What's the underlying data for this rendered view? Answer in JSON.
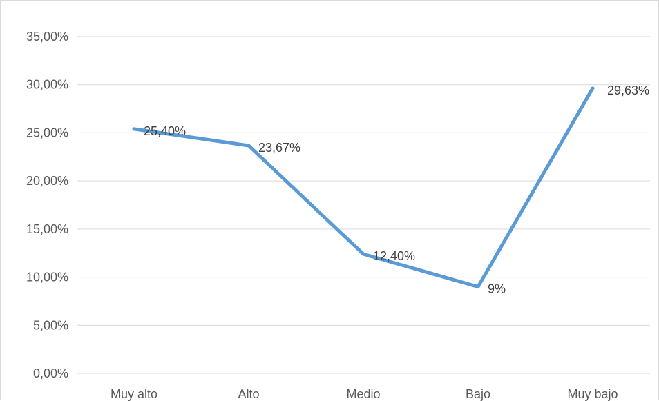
{
  "chart_data": {
    "type": "line",
    "categories": [
      "Muy alto",
      "Alto",
      "Medio",
      "Bajo",
      "Muy bajo"
    ],
    "series": [
      {
        "values": [
          25.4,
          23.67,
          12.4,
          9.0,
          29.63
        ],
        "data_labels": [
          "25,40%",
          "23,67%",
          "12,40%",
          "9%",
          "29,63%"
        ],
        "color": "#5b9bd5"
      }
    ],
    "y_tick_labels": [
      "0,00%",
      "5,00%",
      "10,00%",
      "15,00%",
      "20,00%",
      "25,00%",
      "30,00%",
      "35,00%"
    ],
    "ylim": [
      0,
      35
    ],
    "grid": true,
    "legend": "none",
    "gridline_color": "#d9d9d9",
    "axis_text_color": "#595959"
  }
}
